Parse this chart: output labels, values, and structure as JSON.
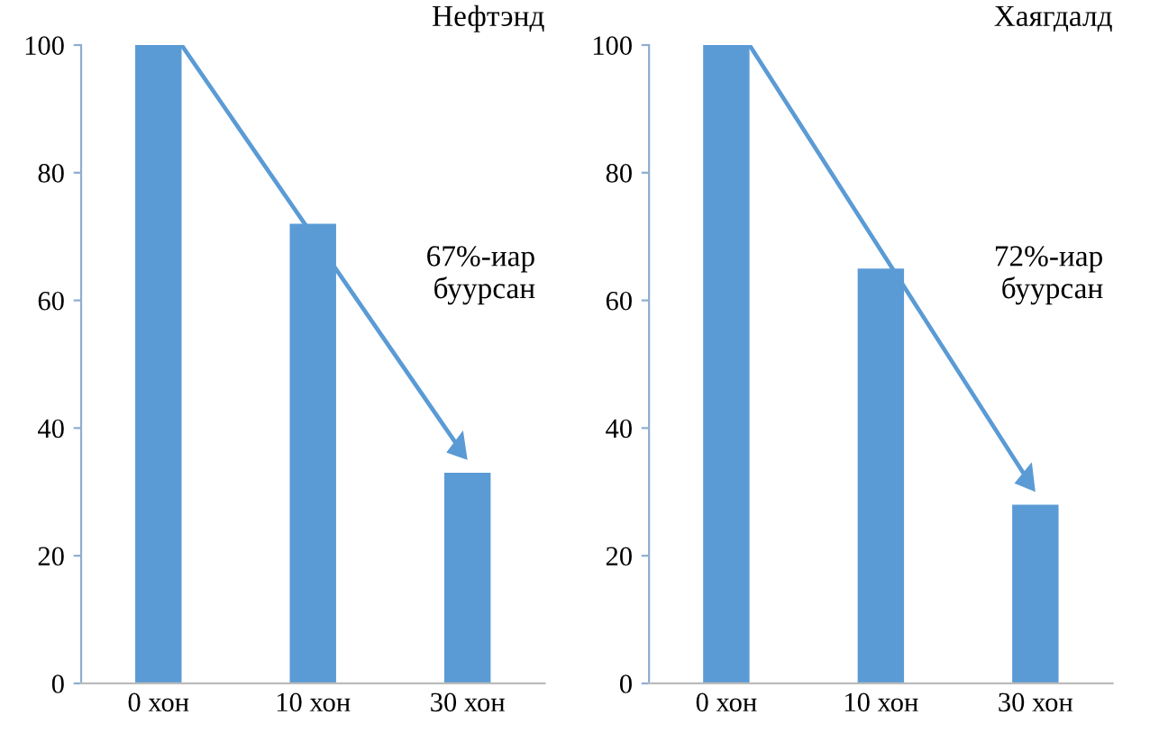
{
  "chart_data": [
    {
      "type": "bar",
      "title": "Нефтэнд",
      "categories": [
        "0 хон",
        "10 хон",
        "30 хон"
      ],
      "values": [
        100,
        72,
        33
      ],
      "color": "#5b9bd5",
      "ylim": [
        0,
        100
      ],
      "yticks": [
        0,
        20,
        40,
        60,
        80,
        100
      ],
      "grid": false,
      "annotations": [
        "67%-иар\nбуурсан"
      ]
    },
    {
      "type": "bar",
      "title": "Хаягдалд",
      "categories": [
        "0 хон",
        "10 хон",
        "30 хон"
      ],
      "values": [
        100,
        65,
        28
      ],
      "color": "#5b9bd5",
      "ylim": [
        0,
        100
      ],
      "yticks": [
        0,
        20,
        40,
        60,
        80,
        100
      ],
      "grid": false,
      "annotations": [
        "72%-иар\nбуурсан"
      ]
    }
  ]
}
